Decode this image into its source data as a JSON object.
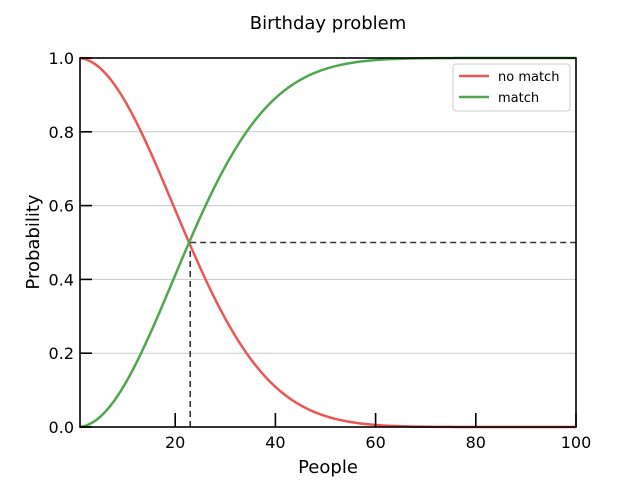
{
  "chart_data": {
    "type": "line",
    "title": "Birthday problem",
    "xlabel": "People",
    "ylabel": "Probability",
    "xlim": [
      1,
      100
    ],
    "ylim": [
      0,
      1
    ],
    "x_ticks": [
      20,
      40,
      60,
      80,
      100
    ],
    "y_ticks": [
      0.0,
      0.2,
      0.4,
      0.6,
      0.8,
      1.0
    ],
    "grid": "horizontal",
    "legend_position": "top-right",
    "x": [
      1,
      2,
      3,
      4,
      5,
      6,
      7,
      8,
      9,
      10,
      11,
      12,
      13,
      14,
      15,
      16,
      17,
      18,
      19,
      20,
      21,
      22,
      23,
      24,
      25,
      26,
      27,
      28,
      29,
      30,
      31,
      32,
      33,
      34,
      35,
      36,
      37,
      38,
      39,
      40,
      41,
      42,
      43,
      44,
      45,
      46,
      47,
      48,
      49,
      50,
      51,
      52,
      53,
      54,
      55,
      56,
      57,
      58,
      59,
      60,
      61,
      62,
      63,
      64,
      65,
      66,
      67,
      68,
      69,
      70,
      71,
      72,
      73,
      74,
      75,
      76,
      77,
      78,
      79,
      80,
      81,
      82,
      83,
      84,
      85,
      86,
      87,
      88,
      89,
      90,
      91,
      92,
      93,
      94,
      95,
      96,
      97,
      98,
      99,
      100
    ],
    "series": [
      {
        "name": "no match",
        "color": "#ee5555",
        "values": [
          1.0,
          0.99726,
          0.9918,
          0.98364,
          0.97286,
          0.95954,
          0.94376,
          0.92566,
          0.90538,
          0.88305,
          0.85886,
          0.83298,
          0.80559,
          0.7769,
          0.7471,
          0.7164,
          0.68499,
          0.65309,
          0.62088,
          0.58856,
          0.55631,
          0.5243,
          0.4927,
          0.46166,
          0.4313,
          0.40176,
          0.37314,
          0.34554,
          0.31903,
          0.29368,
          0.26955,
          0.24665,
          0.22503,
          0.20468,
          0.18562,
          0.16782,
          0.15127,
          0.13593,
          0.12178,
          0.10877,
          0.09685,
          0.08597,
          0.07608,
          0.06712,
          0.05902,
          0.05174,
          0.04521,
          0.03937,
          0.03418,
          0.02963,
          0.02555,
          0.02193,
          0.01875,
          0.01597,
          0.01355,
          0.01145,
          0.00963,
          0.00806,
          0.00672,
          0.00559,
          0.00462,
          0.0038,
          0.00312,
          0.00255,
          0.00207,
          0.00168,
          0.00135,
          0.00108,
          0.00086,
          0.00068,
          0.00054,
          0.00042,
          0.00033,
          0.00025,
          0.00019,
          0.00015,
          0.00011,
          8e-05,
          6e-05,
          5e-05,
          3e-05,
          3e-05,
          2e-05,
          1e-05,
          1e-05,
          1e-05,
          0.0,
          0.0,
          0.0,
          0.0,
          0.0,
          0.0,
          0.0,
          0.0,
          0.0,
          0.0,
          0.0,
          0.0,
          0.0,
          0.0
        ]
      },
      {
        "name": "match",
        "color": "#4ea64e",
        "values": [
          0.0,
          0.00274,
          0.0082,
          0.01636,
          0.02714,
          0.04046,
          0.05624,
          0.07434,
          0.09462,
          0.11695,
          0.14114,
          0.16702,
          0.19441,
          0.2231,
          0.2529,
          0.2836,
          0.31501,
          0.34691,
          0.37912,
          0.41144,
          0.44369,
          0.4757,
          0.5073,
          0.53834,
          0.5687,
          0.59824,
          0.62686,
          0.65446,
          0.68097,
          0.70632,
          0.73045,
          0.75335,
          0.77497,
          0.79532,
          0.81438,
          0.83218,
          0.84873,
          0.86407,
          0.87822,
          0.89123,
          0.90315,
          0.91403,
          0.92392,
          0.93288,
          0.94098,
          0.94826,
          0.95479,
          0.96063,
          0.96582,
          0.97037,
          0.97445,
          0.97807,
          0.98125,
          0.98403,
          0.98645,
          0.98855,
          0.99037,
          0.99194,
          0.99328,
          0.99441,
          0.99538,
          0.9962,
          0.99688,
          0.99745,
          0.99793,
          0.99832,
          0.99865,
          0.99892,
          0.99914,
          0.99932,
          0.99946,
          0.99958,
          0.99967,
          0.99975,
          0.99981,
          0.99985,
          0.99989,
          0.99992,
          0.99994,
          0.99995,
          0.99997,
          0.99997,
          0.99998,
          0.99999,
          0.99999,
          0.99999,
          1.0,
          1.0,
          1.0,
          1.0,
          1.0,
          1.0,
          1.0,
          1.0,
          1.0,
          1.0,
          1.0,
          1.0,
          1.0,
          1.0
        ]
      }
    ],
    "reference_lines": {
      "x": 23,
      "y": 0.5,
      "style": "dashed",
      "color": "#333333"
    }
  }
}
